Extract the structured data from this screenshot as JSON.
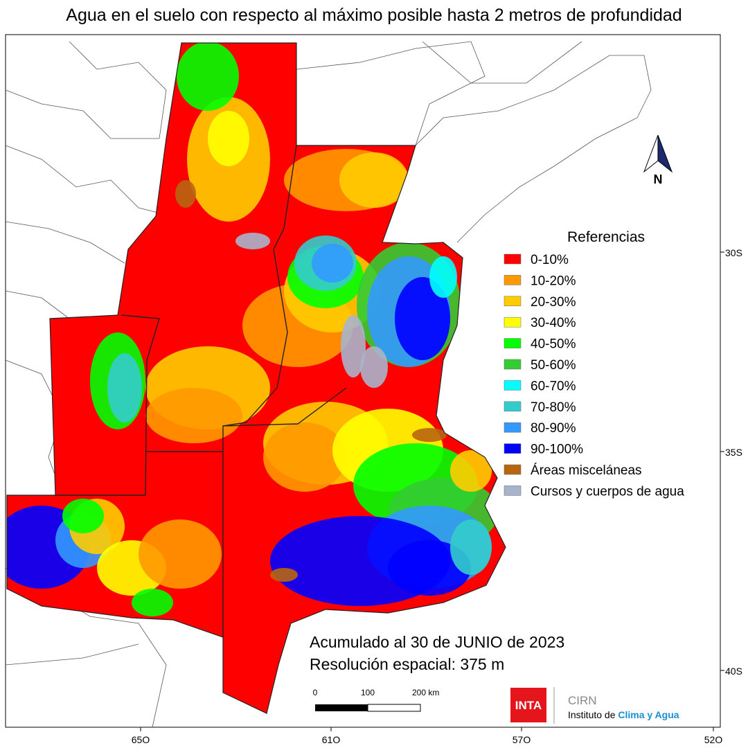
{
  "title": "Agua en el suelo con respecto al máximo posible hasta 2 metros de profundidad",
  "legend": {
    "title": "Referencias",
    "items": [
      {
        "label": "0-10%",
        "color": "#ff0000"
      },
      {
        "label": "10-20%",
        "color": "#ff9900"
      },
      {
        "label": "20-30%",
        "color": "#ffcc00"
      },
      {
        "label": "30-40%",
        "color": "#ffff00"
      },
      {
        "label": "40-50%",
        "color": "#00ff00"
      },
      {
        "label": "50-60%",
        "color": "#33cc33"
      },
      {
        "label": "60-70%",
        "color": "#00ffff"
      },
      {
        "label": "70-80%",
        "color": "#33cccc"
      },
      {
        "label": "80-90%",
        "color": "#3399ff"
      },
      {
        "label": "90-100%",
        "color": "#0000ff"
      },
      {
        "label": "Áreas misceláneas",
        "color": "#b8650f"
      },
      {
        "label": "Cursos y cuerpos de agua",
        "color": "#a8b4cc"
      }
    ]
  },
  "latitude_labels": [
    "30S",
    "35S",
    "40S"
  ],
  "longitude_labels": [
    "65O",
    "61O",
    "57O",
    "52O"
  ],
  "notes": [
    "Acumulado al 30 de JUNIO de 2023",
    "Resolución espacial: 375 m"
  ],
  "scale_bar": [
    "0",
    "100",
    "200 km"
  ],
  "north": "N",
  "logos": {
    "inta": "INTA",
    "cirn": "CIRN",
    "institute": [
      "Instituto de ",
      "Clima y Agua"
    ]
  }
}
